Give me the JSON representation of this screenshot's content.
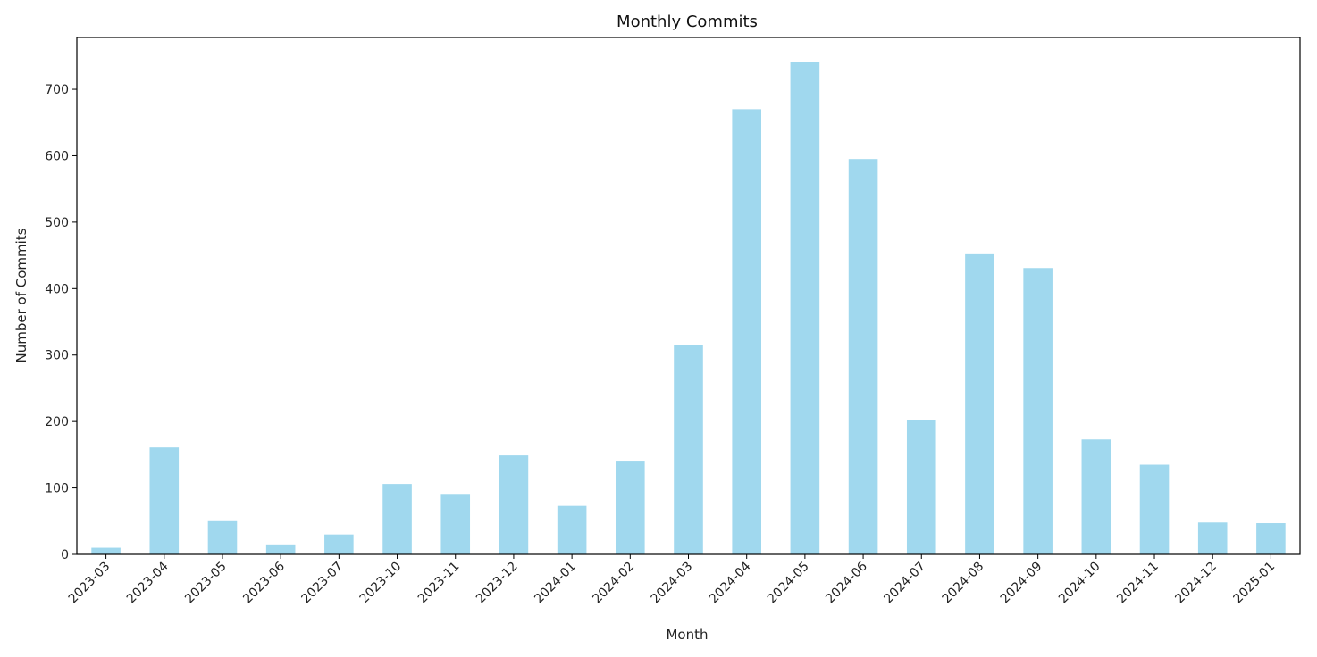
{
  "chart_data": {
    "type": "bar",
    "title": "Monthly Commits",
    "xlabel": "Month",
    "ylabel": "Number of Commits",
    "categories": [
      "2023-03",
      "2023-04",
      "2023-05",
      "2023-06",
      "2023-07",
      "2023-10",
      "2023-11",
      "2023-12",
      "2024-01",
      "2024-02",
      "2024-03",
      "2024-04",
      "2024-05",
      "2024-06",
      "2024-07",
      "2024-08",
      "2024-09",
      "2024-10",
      "2024-11",
      "2024-12",
      "2025-01"
    ],
    "values": [
      10,
      161,
      50,
      15,
      30,
      106,
      91,
      149,
      73,
      141,
      315,
      670,
      741,
      595,
      202,
      453,
      431,
      173,
      135,
      48,
      47
    ],
    "ylim": [
      0,
      778
    ],
    "yticks": [
      0,
      100,
      200,
      300,
      400,
      500,
      600,
      700
    ],
    "bar_color": "#a0d8ee",
    "grid": false,
    "legend": "none"
  }
}
